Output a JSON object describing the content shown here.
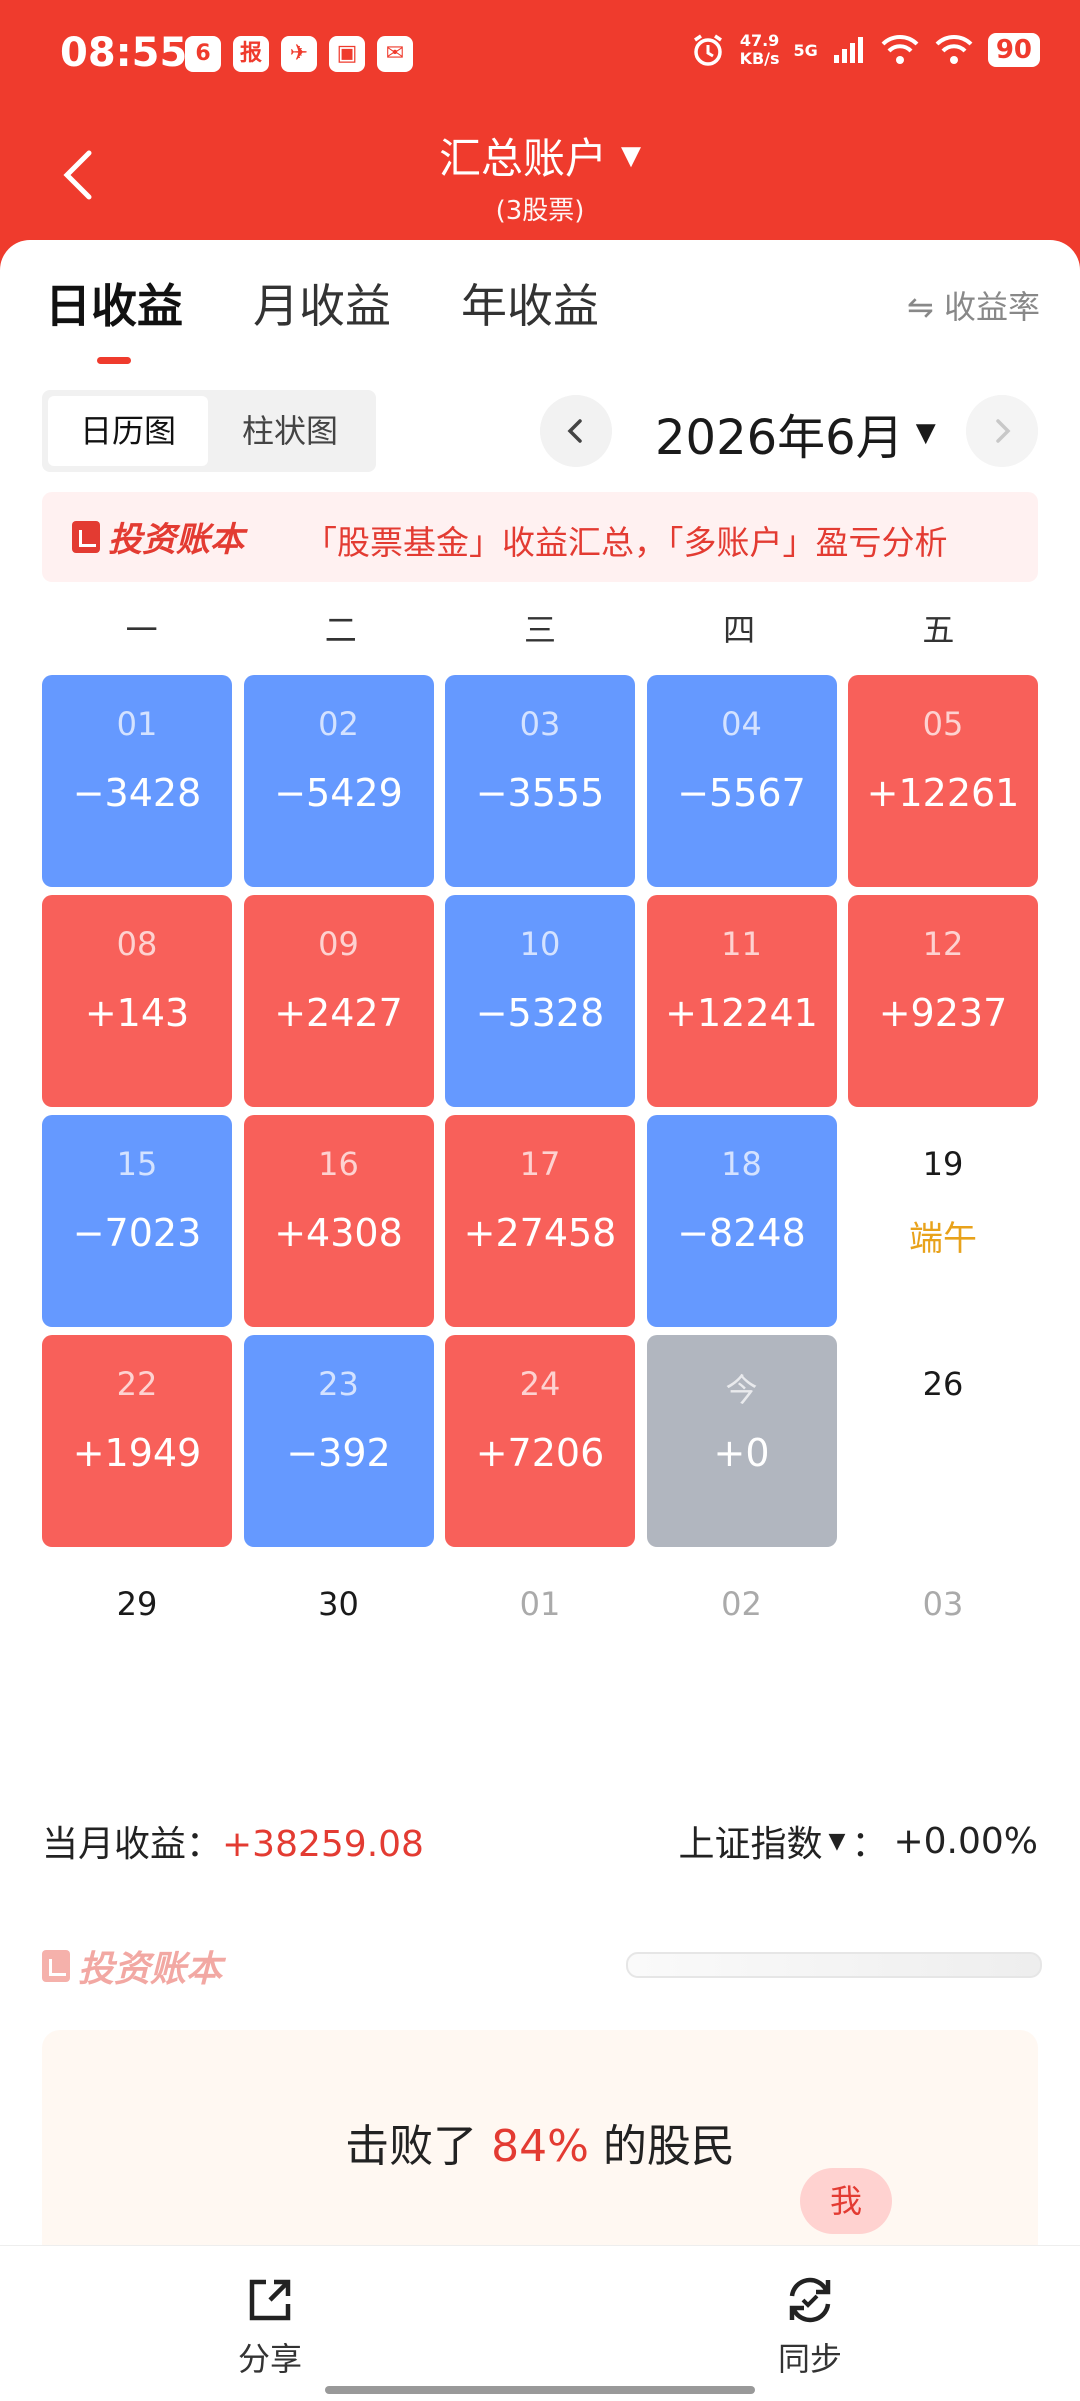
{
  "status_bar": {
    "time": "08:55",
    "apps": [
      "6",
      "报",
      "✈",
      "▣",
      "✉"
    ],
    "speed_value": "47.9",
    "speed_unit": "KB/s",
    "network": "5G",
    "battery": "90"
  },
  "header": {
    "title": "汇总账户",
    "subtitle": "(3股票)"
  },
  "tabs": [
    "日收益",
    "月收益",
    "年收益"
  ],
  "rate_label": "⇋ 收益率",
  "view_toggle": {
    "calendar": "日历图",
    "bar": "柱状图"
  },
  "month_label": "2026年6月",
  "banner": {
    "logo": "投资账本",
    "text": "「股票基金」收益汇总，「多账户」盈亏分析"
  },
  "weekdays": [
    "一",
    "二",
    "三",
    "四",
    "五"
  ],
  "calendar": [
    [
      {
        "date": "01",
        "value": "−3428",
        "kind": "down"
      },
      {
        "date": "02",
        "value": "−5429",
        "kind": "down"
      },
      {
        "date": "03",
        "value": "−3555",
        "kind": "down"
      },
      {
        "date": "04",
        "value": "−5567",
        "kind": "down"
      },
      {
        "date": "05",
        "value": "+12261",
        "kind": "up"
      }
    ],
    [
      {
        "date": "08",
        "value": "+143",
        "kind": "up"
      },
      {
        "date": "09",
        "value": "+2427",
        "kind": "up"
      },
      {
        "date": "10",
        "value": "−5328",
        "kind": "down"
      },
      {
        "date": "11",
        "value": "+12241",
        "kind": "up"
      },
      {
        "date": "12",
        "value": "+9237",
        "kind": "up"
      }
    ],
    [
      {
        "date": "15",
        "value": "−7023",
        "kind": "down"
      },
      {
        "date": "16",
        "value": "+4308",
        "kind": "up"
      },
      {
        "date": "17",
        "value": "+27458",
        "kind": "up"
      },
      {
        "date": "18",
        "value": "−8248",
        "kind": "down"
      },
      {
        "date": "19",
        "value": "",
        "kind": "empty",
        "holiday": "端午"
      }
    ],
    [
      {
        "date": "22",
        "value": "+1949",
        "kind": "up"
      },
      {
        "date": "23",
        "value": "−392",
        "kind": "down"
      },
      {
        "date": "24",
        "value": "+7206",
        "kind": "up"
      },
      {
        "date": "今",
        "value": "+0",
        "kind": "neutral"
      },
      {
        "date": "26",
        "value": "",
        "kind": "empty"
      }
    ],
    [
      {
        "date": "29",
        "value": "",
        "kind": "empty"
      },
      {
        "date": "30",
        "value": "",
        "kind": "empty"
      },
      {
        "date": "01",
        "value": "",
        "kind": "dim"
      },
      {
        "date": "02",
        "value": "",
        "kind": "dim"
      },
      {
        "date": "03",
        "value": "",
        "kind": "dim"
      }
    ]
  ],
  "summary": {
    "label": "当月收益：",
    "value": "+38259.08",
    "index_label": "上证指数",
    "index_sep": "：",
    "index_value": "+0.00%"
  },
  "watermark": "投资账本",
  "beat": {
    "prefix": "击败了",
    "percent": "84%",
    "suffix": "的股民",
    "me": "我"
  },
  "bottom": {
    "share": "分享",
    "sync": "同步"
  },
  "colors": {
    "brand": "#ef3b2d",
    "up": "#f8605a",
    "down": "#6599ff",
    "neutral": "#b1b6bf",
    "holiday": "#e8a21b"
  }
}
